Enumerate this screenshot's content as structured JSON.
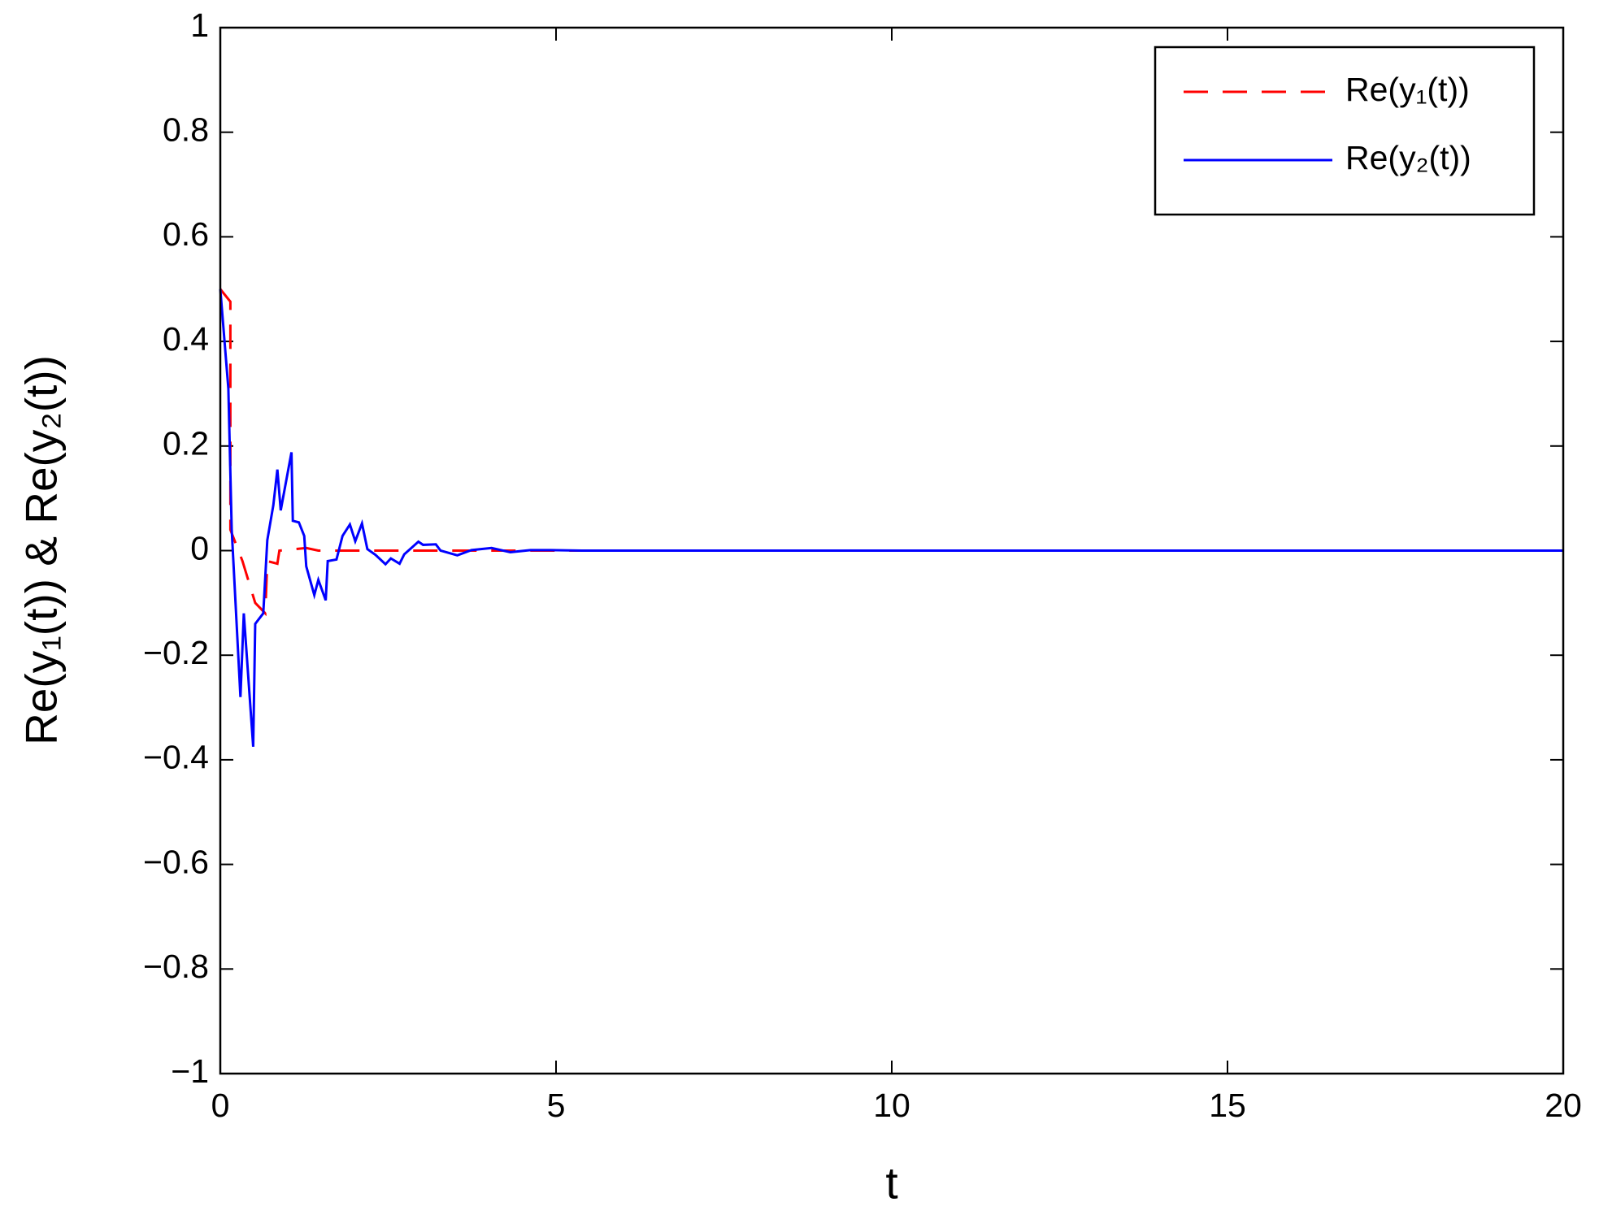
{
  "chart_data": {
    "type": "line",
    "xlabel": "t",
    "ylabel": "Re(y₁(t)) & Re(y₂(t))",
    "xlim": [
      0,
      20
    ],
    "xticks": [
      0,
      5,
      10,
      15,
      20
    ],
    "ylim": [
      -1,
      1
    ],
    "yticks": [
      {
        "value": -1,
        "label": "−1"
      },
      {
        "value": -0.8,
        "label": "−0.8"
      },
      {
        "value": -0.6,
        "label": "−0.6"
      },
      {
        "value": -0.4,
        "label": "−0.4"
      },
      {
        "value": -0.2,
        "label": "−0.2"
      },
      0,
      0.2,
      0.4,
      0.6,
      0.8,
      1
    ],
    "legend": "northeast",
    "series": [
      {
        "name": "Re(y₁(t))",
        "color": "#ff0000",
        "line_style": "dashed",
        "x": [
          0,
          0.15,
          0.15,
          0.33,
          0.52,
          0.67,
          0.7,
          0.85,
          0.88,
          1.28,
          1.46,
          2.5,
          20
        ],
        "values": [
          0.5,
          0.476,
          0.04,
          -0.02,
          -0.1,
          -0.12,
          -0.02,
          -0.025,
          0.0,
          0.005,
          0,
          0,
          0
        ]
      },
      {
        "name": "Re(y₂(t))",
        "color": "#0000ff",
        "line_style": "solid",
        "x": [
          0,
          0.12,
          0.17,
          0.3,
          0.35,
          0.49,
          0.52,
          0.64,
          0.7,
          0.79,
          0.85,
          0.9,
          1.06,
          1.08,
          1.17,
          1.25,
          1.28,
          1.4,
          1.46,
          1.57,
          1.6,
          1.73,
          1.82,
          1.93,
          2.01,
          2.11,
          2.19,
          2.31,
          2.46,
          2.54,
          2.67,
          2.74,
          2.95,
          3.02,
          3.21,
          3.28,
          3.53,
          3.74,
          4.04,
          4.32,
          4.62,
          4.92,
          5.38,
          20
        ],
        "values": [
          0.5,
          0.31,
          0.04,
          -0.28,
          -0.12,
          -0.375,
          -0.14,
          -0.12,
          0.02,
          0.087,
          0.155,
          0.077,
          0.188,
          0.057,
          0.054,
          0.028,
          -0.03,
          -0.085,
          -0.056,
          -0.095,
          -0.02,
          -0.017,
          0.028,
          0.05,
          0.018,
          0.052,
          0.003,
          -0.008,
          -0.026,
          -0.015,
          -0.025,
          -0.007,
          0.017,
          0.011,
          0.012,
          0,
          -0.009,
          0.001,
          0.005,
          -0.003,
          0.001,
          0.001,
          0,
          0
        ]
      }
    ]
  }
}
